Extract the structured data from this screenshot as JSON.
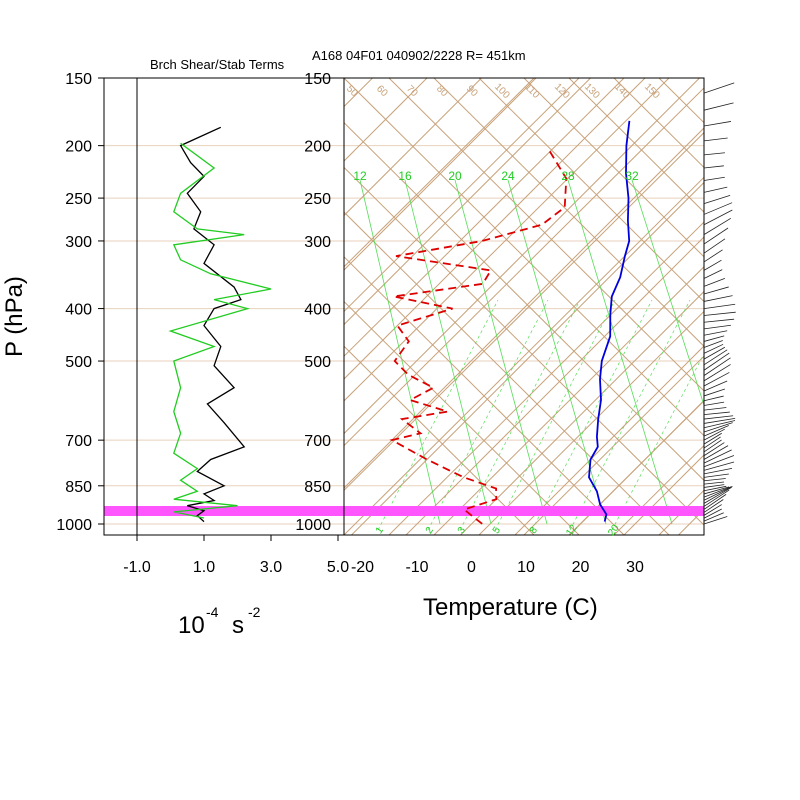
{
  "header": {
    "left_title": "Brch Shear/Stab Terms",
    "right_title": "A168 04F01 040902/2228 R= 451km"
  },
  "axes": {
    "pressure_label": "P (hPa)",
    "pressure_ticks": [
      150,
      200,
      250,
      300,
      400,
      500,
      700,
      850,
      1000
    ],
    "shear_ticks": [
      "-1.0",
      "1.0",
      "3.0",
      "5.0"
    ],
    "shear_unit_base": "10",
    "shear_unit_exp": "-4",
    "shear_unit_s": "s",
    "shear_unit_s_exp": "-2",
    "temp_label": "Temperature (C)",
    "temp_ticks": [
      "-20",
      "-10",
      "0",
      "10",
      "20",
      "30"
    ]
  },
  "colors": {
    "temperature": "#0000dd",
    "dewpoint": "#dd0000",
    "shear_black": "#000000",
    "shear_green": "#22cc22",
    "highlight": "#ff55ff",
    "thin_lines": "#c8a27a",
    "mixing_ratio": "#33cc33"
  },
  "mixing_ratio_labels": [
    "12",
    "16",
    "20",
    "24",
    "28",
    "32"
  ],
  "mixing_ratio_bottom_labels": [
    "1",
    "2",
    "3",
    "5",
    "8",
    "12",
    "20"
  ],
  "adiabat_labels": [
    "50",
    "60",
    "70",
    "80",
    "90",
    "100",
    "110",
    "120",
    "130",
    "140",
    "150"
  ],
  "chart_data": [
    {
      "type": "line",
      "title": "Brch Shear/Stab Terms",
      "xlabel": "10^-4 s^-2",
      "ylabel": "P (hPa)",
      "xlim": [
        -1.0,
        5.0
      ],
      "ylim": [
        1050,
        150
      ],
      "series": [
        {
          "name": "",
          "color": "#000000",
          "points": [
            [
              1.5,
              185
            ],
            [
              0.3,
              200
            ],
            [
              0.6,
              215
            ],
            [
              1.0,
              228
            ],
            [
              0.5,
              245
            ],
            [
              0.9,
              265
            ],
            [
              0.7,
              285
            ],
            [
              1.3,
              305
            ],
            [
              1.0,
              330
            ],
            [
              1.9,
              365
            ],
            [
              2.1,
              385
            ],
            [
              1.3,
              400
            ],
            [
              1.0,
              430
            ],
            [
              1.5,
              470
            ],
            [
              1.3,
              510
            ],
            [
              1.9,
              560
            ],
            [
              1.1,
              600
            ],
            [
              1.6,
              650
            ],
            [
              2.2,
              720
            ],
            [
              1.2,
              760
            ],
            [
              0.8,
              800
            ],
            [
              1.6,
              850
            ],
            [
              1.0,
              880
            ],
            [
              1.3,
              905
            ],
            [
              0.5,
              925
            ],
            [
              1.0,
              945
            ],
            [
              0.8,
              965
            ],
            [
              1.0,
              990
            ]
          ]
        },
        {
          "name": "",
          "color": "#22cc22",
          "points": [
            [
              0.3,
              198
            ],
            [
              1.3,
              220
            ],
            [
              0.3,
              245
            ],
            [
              0.1,
              265
            ],
            [
              0.8,
              285
            ],
            [
              2.2,
              292
            ],
            [
              0.1,
              305
            ],
            [
              0.3,
              325
            ],
            [
              1.2,
              345
            ],
            [
              3.0,
              368
            ],
            [
              1.3,
              385
            ],
            [
              2.3,
              400
            ],
            [
              0.0,
              440
            ],
            [
              1.3,
              470
            ],
            [
              0.1,
              500
            ],
            [
              0.3,
              560
            ],
            [
              0.1,
              620
            ],
            [
              0.3,
              680
            ],
            [
              0.1,
              740
            ],
            [
              0.8,
              790
            ],
            [
              0.3,
              830
            ],
            [
              0.8,
              870
            ],
            [
              0.1,
              900
            ],
            [
              2.0,
              925
            ],
            [
              0.1,
              950
            ],
            [
              1.0,
              975
            ]
          ]
        }
      ]
    },
    {
      "type": "line",
      "title": "A168 04F01 040902/2228 R= 451km",
      "xlabel": "Temperature (C)",
      "ylabel": "P (hPa)",
      "xlim": [
        -23,
        42
      ],
      "ylim": [
        1050,
        150
      ],
      "skew": "skew-T",
      "series": [
        {
          "name": "",
          "color": "#0000dd",
          "style": "solid",
          "points": [
            [
              -45,
              180
            ],
            [
              -41,
              200
            ],
            [
              -36,
              225
            ],
            [
              -31,
              250
            ],
            [
              -27,
              275
            ],
            [
              -23,
              300
            ],
            [
              -21,
              320
            ],
            [
              -18,
              350
            ],
            [
              -16,
              380
            ],
            [
              -13,
              410
            ],
            [
              -9,
              450
            ],
            [
              -6,
              500
            ],
            [
              -3,
              540
            ],
            [
              1,
              590
            ],
            [
              4,
              640
            ],
            [
              7,
              690
            ],
            [
              9,
              720
            ],
            [
              10,
              760
            ],
            [
              13,
              820
            ],
            [
              17,
              870
            ],
            [
              20,
              920
            ],
            [
              23,
              960
            ],
            [
              24,
              990
            ]
          ]
        },
        {
          "name": "",
          "color": "#dd0000",
          "style": "dashed",
          "points": [
            [
              -54,
              205
            ],
            [
              -46,
              230
            ],
            [
              -41,
              260
            ],
            [
              -42,
              280
            ],
            [
              -50,
              300
            ],
            [
              -63,
              320
            ],
            [
              -43,
              340
            ],
            [
              -42,
              360
            ],
            [
              -56,
              380
            ],
            [
              -43,
              400
            ],
            [
              -50,
              430
            ],
            [
              -45,
              460
            ],
            [
              -44,
              500
            ],
            [
              -39,
              530
            ],
            [
              -32,
              560
            ],
            [
              -34,
              590
            ],
            [
              -25,
              620
            ],
            [
              -32,
              640
            ],
            [
              -26,
              680
            ],
            [
              -30,
              700
            ],
            [
              -20,
              760
            ],
            [
              -10,
              820
            ],
            [
              -2,
              860
            ],
            [
              0,
              900
            ],
            [
              -4,
              940
            ],
            [
              -1,
              970
            ],
            [
              2,
              1000
            ]
          ]
        }
      ]
    }
  ]
}
